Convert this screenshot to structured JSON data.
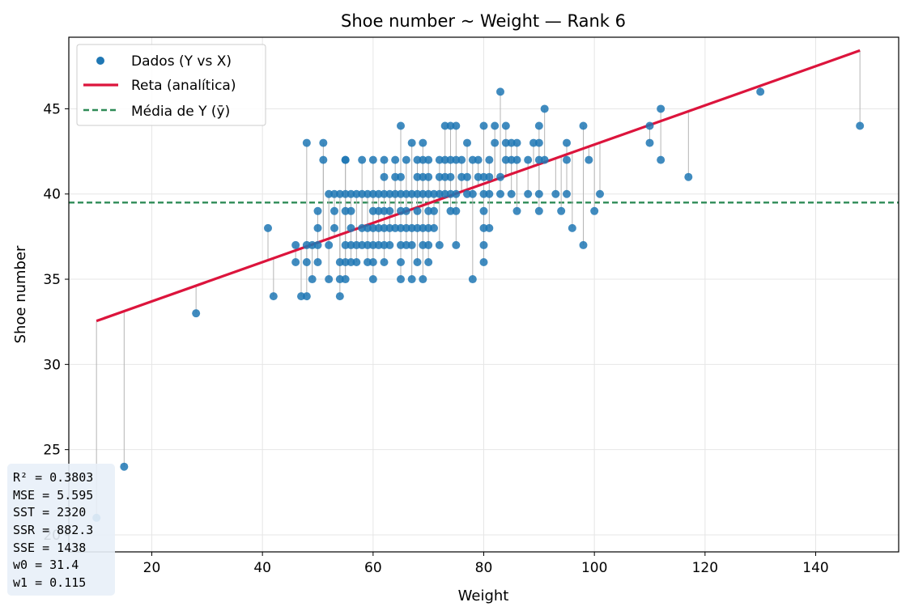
{
  "chart_data": {
    "type": "scatter",
    "title": "Shoe number ~ Weight — Rank 6",
    "xlabel": "Weight",
    "ylabel": "Shoe number",
    "xlim": [
      5,
      155
    ],
    "ylim": [
      19,
      49.2
    ],
    "xticks": [
      20,
      40,
      60,
      80,
      100,
      120,
      140
    ],
    "yticks": [
      20,
      25,
      30,
      35,
      40,
      45
    ],
    "grid": true,
    "legend_position": "top-left",
    "legend": {
      "scatter": "Dados (Y vs X)",
      "line": "Reta (analítica)",
      "mean": "Média de Y (ȳ)"
    },
    "colors": {
      "points": "#1f77b4",
      "line": "#dc143c",
      "mean": "#2e8b57",
      "residual": "#b5b5b5",
      "grid": "#e6e6e6",
      "stats_box": "#e8f0f8"
    },
    "fit": {
      "w0": 31.4,
      "w1": 0.115,
      "x_range": [
        10,
        148
      ]
    },
    "mean_y": 39.5,
    "stats_lines": [
      "R²  = 0.3803",
      "MSE = 5.595",
      "SST = 2320",
      "SSR = 882.3",
      "SSE = 1438",
      "w0  = 31.4",
      "w1  = 0.115"
    ],
    "series": [
      {
        "name": "Dados (Y vs X)",
        "x": [
          10,
          15,
          28,
          41,
          42,
          46,
          46,
          47,
          48,
          48,
          48,
          48,
          49,
          49,
          50,
          50,
          50,
          50,
          51,
          51,
          52,
          52,
          52,
          53,
          53,
          53,
          54,
          54,
          54,
          54,
          55,
          55,
          55,
          55,
          55,
          55,
          55,
          56,
          56,
          56,
          56,
          56,
          57,
          57,
          57,
          58,
          58,
          58,
          58,
          59,
          59,
          59,
          59,
          60,
          60,
          60,
          60,
          60,
          60,
          60,
          61,
          61,
          61,
          61,
          62,
          62,
          62,
          62,
          62,
          62,
          62,
          63,
          63,
          63,
          63,
          64,
          64,
          64,
          64,
          65,
          65,
          65,
          65,
          65,
          65,
          65,
          65,
          66,
          66,
          66,
          66,
          66,
          67,
          67,
          67,
          67,
          67,
          68,
          68,
          68,
          68,
          68,
          68,
          69,
          69,
          69,
          69,
          69,
          69,
          69,
          70,
          70,
          70,
          70,
          70,
          70,
          70,
          71,
          71,
          71,
          72,
          72,
          72,
          72,
          73,
          73,
          73,
          73,
          74,
          74,
          74,
          74,
          74,
          75,
          75,
          75,
          75,
          75,
          76,
          76,
          77,
          77,
          77,
          78,
          78,
          78,
          79,
          79,
          80,
          80,
          80,
          80,
          80,
          80,
          80,
          81,
          81,
          81,
          81,
          82,
          82,
          83,
          83,
          83,
          84,
          84,
          84,
          85,
          85,
          85,
          86,
          86,
          86,
          88,
          88,
          89,
          90,
          90,
          90,
          90,
          90,
          91,
          91,
          93,
          94,
          95,
          95,
          95,
          96,
          98,
          98,
          99,
          100,
          101,
          110,
          110,
          112,
          112,
          117,
          130,
          148
        ],
        "y": [
          21,
          24,
          33,
          38,
          34,
          37,
          36,
          34,
          43,
          37,
          36,
          34,
          37,
          35,
          39,
          38,
          37,
          36,
          43,
          42,
          40,
          37,
          35,
          40,
          39,
          38,
          40,
          36,
          35,
          34,
          42,
          40,
          39,
          37,
          36,
          35,
          42,
          40,
          39,
          38,
          37,
          36,
          40,
          37,
          36,
          42,
          40,
          38,
          37,
          40,
          38,
          37,
          36,
          42,
          40,
          39,
          38,
          37,
          36,
          35,
          40,
          39,
          38,
          37,
          42,
          41,
          40,
          39,
          38,
          37,
          36,
          40,
          39,
          38,
          37,
          42,
          41,
          40,
          38,
          44,
          41,
          40,
          39,
          38,
          37,
          36,
          35,
          42,
          40,
          39,
          38,
          37,
          43,
          40,
          38,
          37,
          35,
          42,
          41,
          40,
          39,
          38,
          36,
          43,
          42,
          41,
          40,
          38,
          37,
          35,
          42,
          41,
          40,
          39,
          38,
          37,
          36,
          40,
          39,
          38,
          42,
          41,
          40,
          37,
          44,
          42,
          41,
          40,
          44,
          42,
          41,
          40,
          39,
          44,
          42,
          40,
          39,
          37,
          42,
          41,
          43,
          41,
          40,
          42,
          40,
          35,
          42,
          41,
          44,
          41,
          40,
          39,
          38,
          37,
          36,
          42,
          41,
          40,
          38,
          44,
          43,
          46,
          41,
          40,
          44,
          43,
          42,
          43,
          42,
          40,
          43,
          39,
          42,
          42,
          40,
          43,
          44,
          43,
          42,
          40,
          39,
          45,
          42,
          40,
          39,
          43,
          42,
          40,
          38,
          44,
          37,
          42,
          39,
          40,
          44,
          43,
          45,
          42,
          41,
          46,
          44
        ]
      }
    ]
  }
}
